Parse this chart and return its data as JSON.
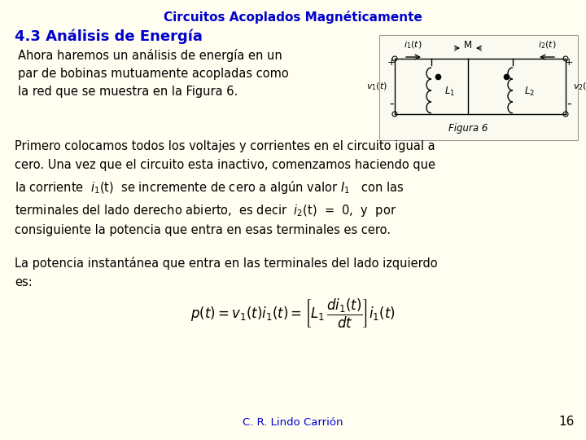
{
  "background_color": "#FFFEF0",
  "title": "Circuitos Acoplados Magnéticamente",
  "title_color": "#0000CC",
  "title_fontsize": 11,
  "section_title": "4.3 Análisis de Energía",
  "section_color": "#0000CC",
  "section_fontsize": 13,
  "footer_text": "C. R. Lindo Carrión",
  "footer_color": "#0000CC",
  "page_number": "16",
  "text_color": "#000000",
  "body_fontsize": 10.5
}
